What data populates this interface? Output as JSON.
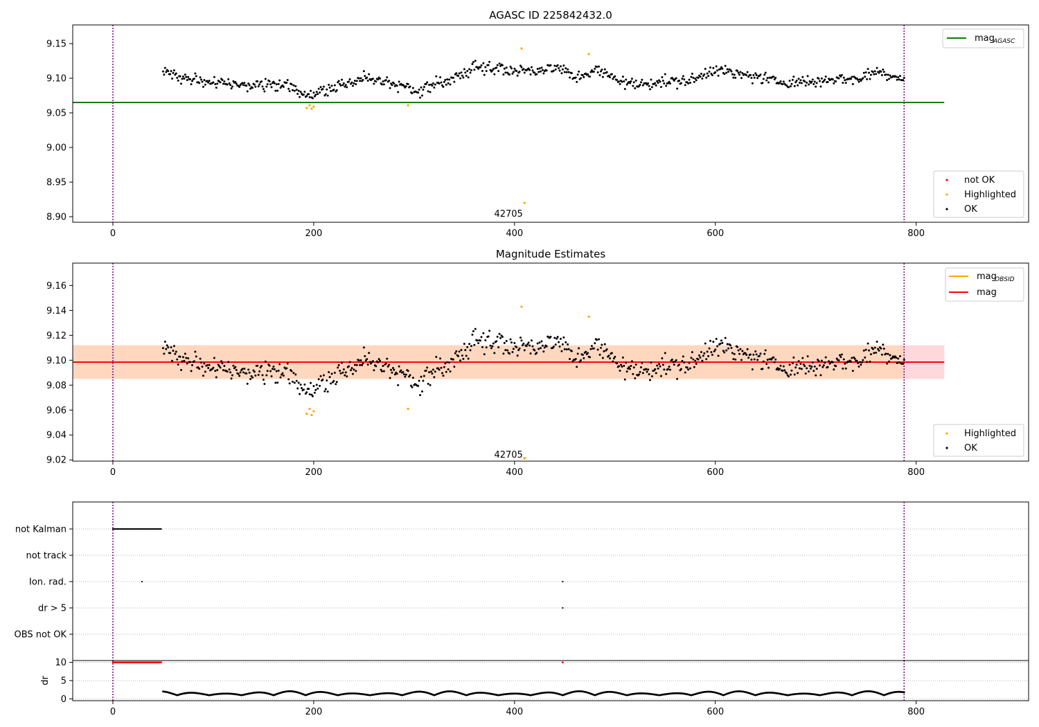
{
  "chart_data": [
    {
      "type": "scatter",
      "title": "AGASC ID 225842432.0",
      "xlabel": "",
      "ylabel": "",
      "xlim": [
        -40,
        912
      ],
      "ylim": [
        8.892,
        9.177
      ],
      "xticks": [
        "0",
        "200",
        "400",
        "600",
        "800"
      ],
      "yticks": [
        "8.90",
        "8.95",
        "9.00",
        "9.05",
        "9.10",
        "9.15"
      ],
      "ytick_values": [
        8.9,
        8.95,
        9.0,
        9.05,
        9.1,
        9.15
      ],
      "xtick_values": [
        0,
        200,
        400,
        600,
        800
      ],
      "hlines": [
        {
          "name": "mag_AGASC",
          "y": 9.065,
          "x_range": [
            -40,
            828
          ],
          "color": "#008000"
        }
      ],
      "vlines": [
        {
          "x": 0,
          "color": "#800080",
          "style": "dotted"
        },
        {
          "x": 788,
          "color": "#800080",
          "style": "dotted"
        }
      ],
      "annotation": {
        "text": "42705",
        "x": 394,
        "y": 8.904
      },
      "ok_trend": [
        [
          50,
          9.108
        ],
        [
          75,
          9.1
        ],
        [
          100,
          9.096
        ],
        [
          125,
          9.088
        ],
        [
          150,
          9.09
        ],
        [
          175,
          9.09
        ],
        [
          195,
          9.073
        ],
        [
          210,
          9.082
        ],
        [
          230,
          9.09
        ],
        [
          250,
          9.1
        ],
        [
          270,
          9.095
        ],
        [
          290,
          9.088
        ],
        [
          305,
          9.08
        ],
        [
          320,
          9.092
        ],
        [
          340,
          9.1
        ],
        [
          360,
          9.115
        ],
        [
          380,
          9.117
        ],
        [
          400,
          9.11
        ],
        [
          420,
          9.112
        ],
        [
          445,
          9.115
        ],
        [
          460,
          9.1
        ],
        [
          480,
          9.112
        ],
        [
          500,
          9.1
        ],
        [
          520,
          9.09
        ],
        [
          540,
          9.095
        ],
        [
          560,
          9.095
        ],
        [
          580,
          9.098
        ],
        [
          600,
          9.115
        ],
        [
          620,
          9.105
        ],
        [
          640,
          9.103
        ],
        [
          660,
          9.095
        ],
        [
          680,
          9.095
        ],
        [
          700,
          9.095
        ],
        [
          720,
          9.1
        ],
        [
          740,
          9.098
        ],
        [
          760,
          9.11
        ],
        [
          788,
          9.1
        ]
      ],
      "highlighted": [
        {
          "x": 193,
          "y": 9.057
        },
        {
          "x": 196,
          "y": 9.061
        },
        {
          "x": 198,
          "y": 9.056
        },
        {
          "x": 200,
          "y": 9.059
        },
        {
          "x": 294,
          "y": 9.061
        },
        {
          "x": 407,
          "y": 9.143
        },
        {
          "x": 474,
          "y": 9.135
        },
        {
          "x": 410,
          "y": 8.92
        }
      ],
      "legends": {
        "lines": [
          {
            "label": "mag",
            "sub": "AGASC",
            "color": "#008000"
          }
        ],
        "points": [
          {
            "label": "not OK",
            "color": "#ff0000"
          },
          {
            "label": "Highlighted",
            "color": "#ffa500"
          },
          {
            "label": "OK",
            "color": "#000000"
          }
        ]
      }
    },
    {
      "type": "scatter",
      "title": "Magnitude Estimates",
      "xlabel": "",
      "ylabel": "",
      "xlim": [
        -40,
        912
      ],
      "ylim": [
        9.019,
        9.178
      ],
      "xticks": [
        "0",
        "200",
        "400",
        "600",
        "800"
      ],
      "yticks": [
        "9.02",
        "9.04",
        "9.06",
        "9.08",
        "9.10",
        "9.12",
        "9.14",
        "9.16"
      ],
      "ytick_values": [
        9.02,
        9.04,
        9.06,
        9.08,
        9.1,
        9.12,
        9.14,
        9.16
      ],
      "xtick_values": [
        0,
        200,
        400,
        600,
        800
      ],
      "band": {
        "y0": 9.085,
        "y1": 9.112,
        "x_range": [
          -40,
          828
        ]
      },
      "hlines": [
        {
          "name": "mag_OBSID",
          "y": 9.0985,
          "x_range": [
            -40,
            788
          ],
          "color": "#ffa500"
        },
        {
          "name": "mag",
          "y": 9.0985,
          "x_range": [
            -40,
            828
          ],
          "color": "#ff0000"
        }
      ],
      "vlines": [
        {
          "x": 0,
          "color": "#800080",
          "style": "dotted"
        },
        {
          "x": 788,
          "color": "#800080",
          "style": "dotted"
        }
      ],
      "annotation": {
        "text": "42705",
        "x": 394,
        "y": 9.024
      },
      "highlighted": [
        {
          "x": 193,
          "y": 9.057
        },
        {
          "x": 196,
          "y": 9.061
        },
        {
          "x": 198,
          "y": 9.056
        },
        {
          "x": 200,
          "y": 9.059
        },
        {
          "x": 294,
          "y": 9.061
        },
        {
          "x": 407,
          "y": 9.143
        },
        {
          "x": 474,
          "y": 9.135
        }
      ],
      "off_scale_marker": {
        "x": 410,
        "y": 9.021,
        "color": "#ffa500"
      },
      "legends": {
        "lines": [
          {
            "label": "mag",
            "sub": "OBSID",
            "color": "#ffa500"
          },
          {
            "label": "mag",
            "sub": "",
            "color": "#ff0000"
          }
        ],
        "points": [
          {
            "label": "Highlighted",
            "color": "#ffa500"
          },
          {
            "label": "OK",
            "color": "#000000"
          }
        ]
      }
    },
    {
      "type": "scatter",
      "title": "",
      "xlim": [
        -40,
        912
      ],
      "categories": [
        "not Kalman",
        "not track",
        "Ion. rad.",
        "dr > 5",
        "OBS not OK"
      ],
      "flags": [
        {
          "category": "not Kalman",
          "x_range": [
            0,
            48
          ]
        },
        {
          "category": "Ion. rad.",
          "points": [
            29,
            448
          ]
        },
        {
          "category": "dr > 5",
          "points": [
            448
          ]
        }
      ],
      "vlines": [
        {
          "x": 0,
          "color": "#800080",
          "style": "dotted"
        },
        {
          "x": 788,
          "color": "#800080",
          "style": "dotted"
        }
      ]
    },
    {
      "type": "scatter",
      "title": "",
      "xlabel": "",
      "ylabel": "dr",
      "xlim": [
        -40,
        912
      ],
      "ylim": [
        -0.5,
        10.5
      ],
      "xticks": [
        "0",
        "200",
        "400",
        "600",
        "800"
      ],
      "xtick_values": [
        0,
        200,
        400,
        600,
        800
      ],
      "yticks": [
        "0",
        "5",
        "10"
      ],
      "ytick_values": [
        0,
        5,
        10
      ],
      "red_points": {
        "x_range": [
          0,
          48
        ],
        "y": 10,
        "extra": [
          {
            "x": 448,
            "y": 10
          }
        ]
      },
      "vlines": [
        {
          "x": 0,
          "color": "#800080",
          "style": "dotted"
        },
        {
          "x": 788,
          "color": "#800080",
          "style": "dotted"
        }
      ]
    }
  ]
}
